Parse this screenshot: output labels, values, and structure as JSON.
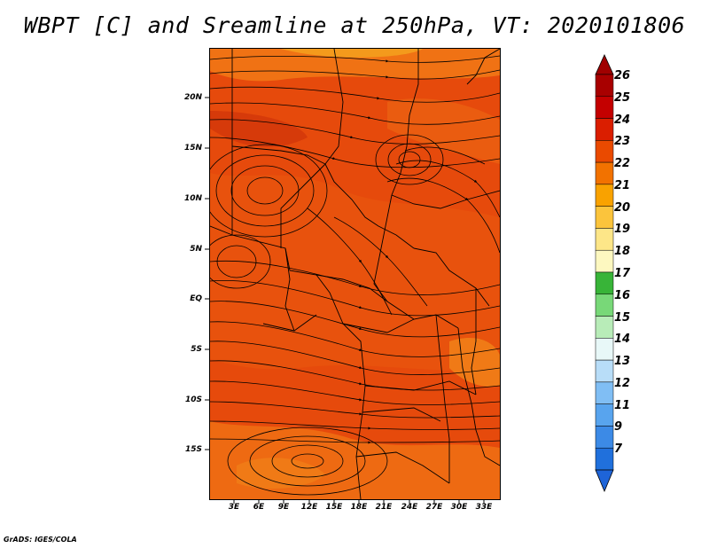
{
  "title": "WBPT [C] and Sreamline at 250hPa, VT: 2020101806",
  "credit": "GrADS: IGES/COLA",
  "map": {
    "lat_labels": [
      "20N",
      "15N",
      "10N",
      "5N",
      "EQ",
      "5S",
      "10S",
      "15S"
    ],
    "lon_labels": [
      "3E",
      "6E",
      "9E",
      "12E",
      "15E",
      "18E",
      "21E",
      "24E",
      "27E",
      "30E",
      "33E"
    ],
    "fill_colors": {
      "base": "#e64a0c",
      "dark": "#d63a0a",
      "light": "#f07214",
      "pale": "#f49a1c"
    }
  },
  "colorbar": {
    "labels": [
      "26",
      "25",
      "24",
      "23",
      "22",
      "21",
      "20",
      "19",
      "18",
      "17",
      "16",
      "15",
      "14",
      "13",
      "12",
      "11",
      "9",
      "7"
    ],
    "colors": [
      "#a80000",
      "#c40000",
      "#da1e00",
      "#ea4a00",
      "#f27200",
      "#f9a200",
      "#fbc43c",
      "#fde688",
      "#fdf8c0",
      "#38b438",
      "#78d878",
      "#b8ecb8",
      "#e8f8f8",
      "#b8ddf8",
      "#80bef4",
      "#58a4ee",
      "#3c8ae6",
      "#2070dc"
    ],
    "top_arrow_color": "#a00000",
    "bottom_arrow_color": "#1e64d8"
  }
}
